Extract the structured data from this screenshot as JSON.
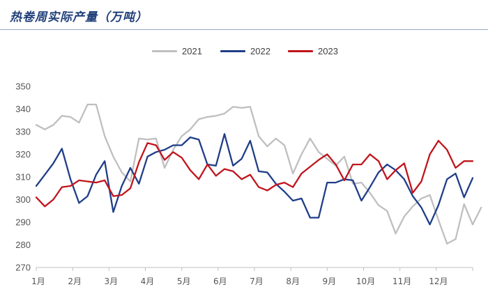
{
  "chart_data": {
    "type": "line",
    "title": "热卷周实际产量（万吨）",
    "xlabel": "",
    "ylabel": "",
    "ylim": [
      270,
      350
    ],
    "yticks": [
      270,
      280,
      290,
      300,
      310,
      320,
      330,
      340,
      350
    ],
    "x_tick_labels": [
      "1月",
      "2月",
      "3月",
      "4月",
      "5月",
      "6月",
      "7月",
      "8月",
      "9月",
      "10月",
      "11月",
      "12月"
    ],
    "x_unit": "week of year",
    "grid": false,
    "legend_position": "top",
    "series": [
      {
        "name": "2021",
        "color": "#bfbfbf",
        "values": [
          333,
          331,
          333,
          337,
          336.5,
          334,
          342,
          342,
          328,
          319,
          312,
          308,
          327,
          326.5,
          327,
          314,
          322,
          328,
          331,
          335.5,
          336.5,
          337,
          338,
          341,
          340.5,
          341,
          328,
          323.5,
          327,
          324,
          311.5,
          320,
          327,
          321,
          318,
          315,
          319,
          307,
          307.5,
          303,
          297.5,
          295,
          285,
          292.5,
          297,
          300.5,
          302,
          291,
          280.5,
          282.5,
          298,
          289,
          296.5
        ]
      },
      {
        "name": "2022",
        "color": "#1f3e88",
        "values": [
          306,
          311,
          316,
          322.5,
          309,
          298.5,
          301.5,
          311,
          317,
          294.5,
          306,
          314,
          307,
          319,
          321,
          322,
          324,
          324,
          327.5,
          326.5,
          315.5,
          315,
          329,
          315,
          318,
          326,
          312.5,
          312,
          307,
          303.5,
          299.5,
          300.5,
          292,
          292,
          307.5,
          307.5,
          309,
          308.5,
          299.5,
          305.5,
          312,
          315.5,
          313,
          309,
          301.5,
          296.5,
          289,
          297.5,
          309,
          311.5,
          301,
          309.5
        ]
      },
      {
        "name": "2023",
        "color": "#c0141c",
        "values": [
          301,
          297,
          300,
          305.5,
          306,
          308.5,
          308,
          307.5,
          308.5,
          301.5,
          302,
          305,
          316.5,
          325,
          324,
          317.5,
          321,
          318.5,
          313,
          309,
          315.5,
          310.5,
          313.5,
          312.5,
          309,
          311,
          305.5,
          304,
          306.5,
          307.5,
          305.5,
          311.5,
          314.5,
          317.5,
          320,
          315.5,
          308.5,
          315.5,
          315.5,
          320,
          317,
          309,
          313,
          316,
          303,
          308,
          320,
          326,
          322,
          314,
          317,
          317
        ]
      }
    ]
  }
}
